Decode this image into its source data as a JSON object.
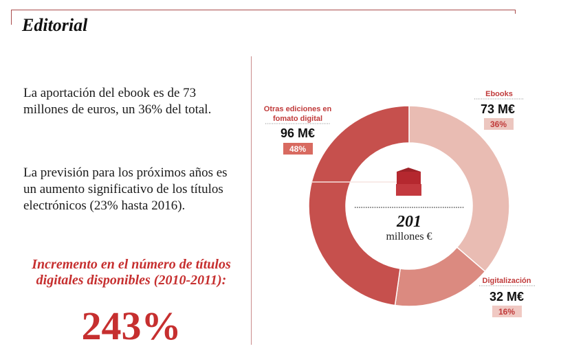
{
  "page": {
    "section_title": "Editorial",
    "paragraph_1": "La aportación del ebook es de 73 millones de euros, un 36% del total.",
    "paragraph_2": "La previsión para los próximos años es un aumento significativo de los títulos electrónicos (23% hasta 2016).",
    "highlight_caption": "Incremento en el número de títulos digitales disponibles (2010-2011):",
    "highlight_value": "243%"
  },
  "chart_data": {
    "type": "pie",
    "style": "donut",
    "unit": "M€",
    "total_value": "201",
    "total_unit": "millones €",
    "slices": [
      {
        "name": "Ebooks",
        "value": 73,
        "value_label": "73 M€",
        "percent": 36,
        "percent_label": "36%",
        "color": "#e9bcb3",
        "badge": "#ecc6bf"
      },
      {
        "name": "Digitalización",
        "value": 32,
        "value_label": "32 M€",
        "percent": 16,
        "percent_label": "16%",
        "color": "#db8a80",
        "badge": "#f0c9c3"
      },
      {
        "name": "Otras ediciones en fomato digital",
        "name_lines": [
          "Otras ediciones en",
          "fomato digital"
        ],
        "value": 96,
        "value_label": "96 M€",
        "percent": 48,
        "percent_label": "48%",
        "color": "#c6504d",
        "badge": "#d86a60"
      }
    ],
    "colors": {
      "accent": "#c62f2f",
      "ring_inner": "#ffffff"
    }
  }
}
